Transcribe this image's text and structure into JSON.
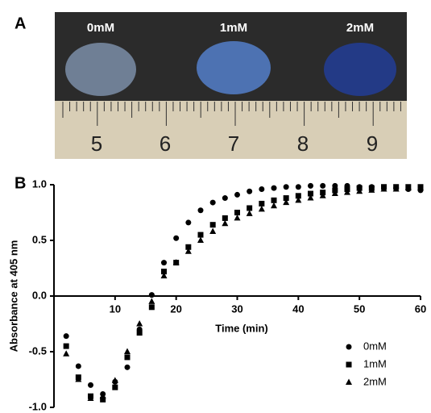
{
  "panel_a": {
    "label": "A",
    "drops": [
      "0mM",
      "1mM",
      "2mM"
    ],
    "ruler_labels": [
      "5",
      "6",
      "7",
      "8",
      "9"
    ]
  },
  "chart_data": {
    "type": "scatter",
    "label": "B",
    "x_label": "Time (min)",
    "y_label": "Absorbance at 405 nm",
    "x": [
      2,
      4,
      6,
      8,
      10,
      12,
      14,
      16,
      18,
      20,
      22,
      24,
      26,
      28,
      30,
      32,
      34,
      36,
      38,
      40,
      42,
      44,
      46,
      48,
      50,
      52,
      54,
      56,
      58,
      60
    ],
    "series": [
      {
        "name": "0mM",
        "color": "#000000",
        "marker": "circle",
        "values": [
          -0.36,
          -0.63,
          -0.8,
          -0.88,
          -0.77,
          -0.64,
          -0.3,
          0.01,
          0.3,
          0.52,
          0.66,
          0.77,
          0.84,
          0.88,
          0.91,
          0.94,
          0.96,
          0.97,
          0.98,
          0.98,
          0.99,
          0.99,
          0.99,
          0.99,
          0.98,
          0.98,
          0.97,
          0.97,
          0.96,
          0.95
        ]
      },
      {
        "name": "1mM",
        "color": "#000000",
        "marker": "square",
        "values": [
          -0.45,
          -0.73,
          -0.9,
          -0.93,
          -0.82,
          -0.55,
          -0.33,
          -0.1,
          0.22,
          0.3,
          0.44,
          0.55,
          0.64,
          0.7,
          0.75,
          0.79,
          0.83,
          0.86,
          0.88,
          0.9,
          0.92,
          0.93,
          0.95,
          0.96,
          0.97,
          0.97,
          0.98,
          0.98,
          0.98,
          0.98
        ]
      },
      {
        "name": "2mM",
        "color": "#000000",
        "marker": "triangle",
        "values": [
          -0.52,
          -0.75,
          -0.92,
          -0.9,
          -0.76,
          -0.5,
          -0.25,
          -0.05,
          0.18,
          0.3,
          0.4,
          0.5,
          0.58,
          0.65,
          0.7,
          0.74,
          0.78,
          0.81,
          0.84,
          0.86,
          0.88,
          0.9,
          0.92,
          0.93,
          0.94,
          0.95,
          0.96,
          0.96,
          0.97,
          0.97
        ]
      }
    ],
    "xlim": [
      0,
      60
    ],
    "xticks": [
      10,
      20,
      30,
      40,
      50,
      60
    ],
    "ylim": [
      -1,
      1
    ],
    "yticks": [
      {
        "value": 1,
        "label": "1.0"
      },
      0.5,
      {
        "value": 0,
        "label": "0.0"
      },
      -0.5,
      {
        "value": -1,
        "label": "-1.0"
      }
    ],
    "legend": "lower right"
  }
}
